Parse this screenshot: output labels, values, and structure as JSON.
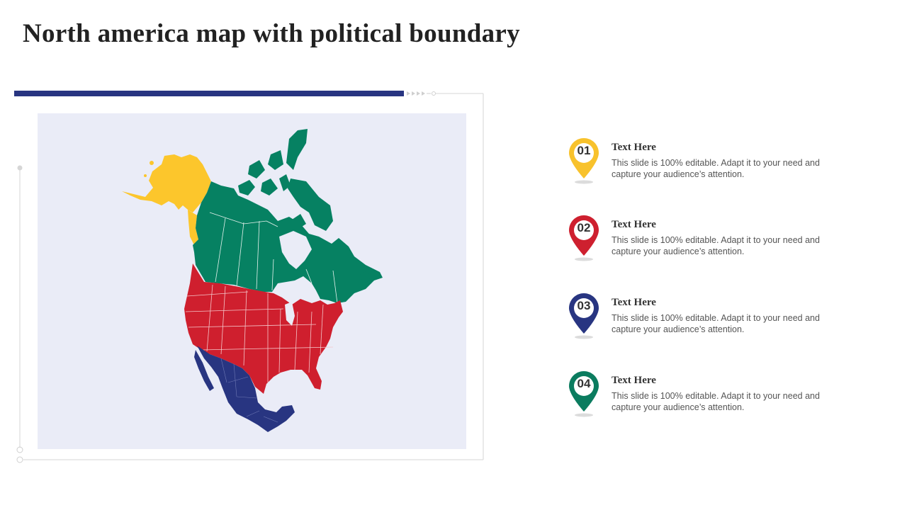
{
  "title": "North america map with political boundary",
  "map": {
    "regions": [
      {
        "name": "alaska",
        "color": "#fcc62c"
      },
      {
        "name": "canada",
        "color": "#068162"
      },
      {
        "name": "usa",
        "color": "#cf1f2e"
      },
      {
        "name": "mexico",
        "color": "#283581"
      }
    ],
    "background": "#eaecf7"
  },
  "legend": [
    {
      "number": "01",
      "title": "Text Here",
      "text": "This slide is 100% editable. Adapt it to your need and capture your audience’s attention.",
      "color": "#f8c22c"
    },
    {
      "number": "02",
      "title": "Text Here",
      "text": "This slide is 100% editable. Adapt it to your need and capture your audience’s attention.",
      "color": "#ce202f"
    },
    {
      "number": "03",
      "title": "Text Here",
      "text": "This slide is 100% editable. Adapt it to your need and capture your audience’s attention.",
      "color": "#283581"
    },
    {
      "number": "04",
      "title": "Text Here",
      "text": "This slide is 100% editable. Adapt it to your need and capture your audience’s attention.",
      "color": "#0b7c5f"
    }
  ]
}
